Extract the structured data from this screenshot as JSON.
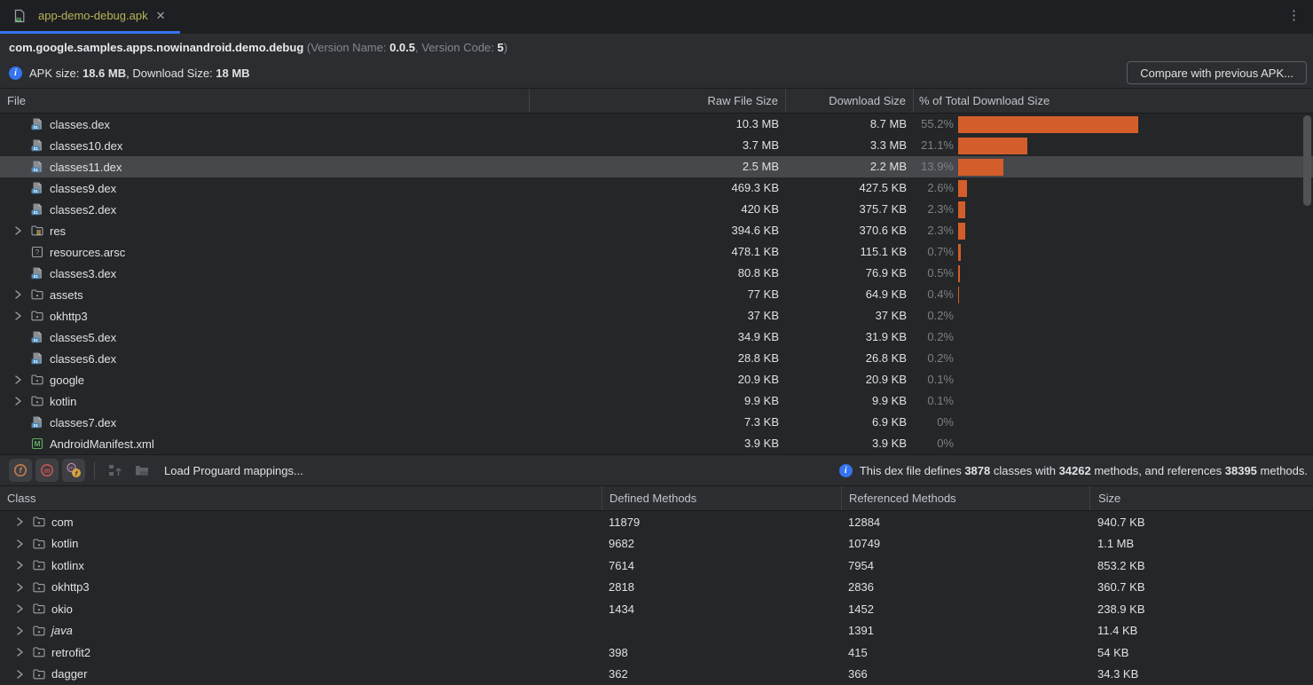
{
  "tab": {
    "title": "app-demo-debug.apk",
    "close_glyph": "✕",
    "kebab_glyph": "⋮"
  },
  "header": {
    "package": "com.google.samples.apps.nowinandroid.demo.debug",
    "ver_open": " (Version Name: ",
    "version_name": "0.0.5",
    "ver_mid": ", Version Code: ",
    "version_code": "5",
    "ver_close": ")"
  },
  "apk_summary": {
    "label1": "APK size: ",
    "apk_size": "18.6 MB",
    "label2": ", Download Size: ",
    "download_size": "18 MB",
    "compare_button": "Compare with previous APK..."
  },
  "colors": {
    "accent_blue": "#3574F0",
    "bar_orange": "#d35e2b",
    "selection_gray": "#46484b",
    "selection_blue": "#2e436e",
    "tab_label": "#b8b357"
  },
  "file_table": {
    "columns": [
      "File",
      "Raw File Size",
      "Download Size",
      "% of Total Download Size"
    ],
    "rows": [
      {
        "icon": "dex-file-icon",
        "chevron": false,
        "name": "classes.dex",
        "raw": "10.3 MB",
        "download": "8.7 MB",
        "pct": "55.2%",
        "pct_value": 55.2,
        "selected": false
      },
      {
        "icon": "dex-file-icon",
        "chevron": false,
        "name": "classes10.dex",
        "raw": "3.7 MB",
        "download": "3.3 MB",
        "pct": "21.1%",
        "pct_value": 21.1,
        "selected": false
      },
      {
        "icon": "dex-file-icon",
        "chevron": false,
        "name": "classes11.dex",
        "raw": "2.5 MB",
        "download": "2.2 MB",
        "pct": "13.9%",
        "pct_value": 13.9,
        "selected": true
      },
      {
        "icon": "dex-file-icon",
        "chevron": false,
        "name": "classes9.dex",
        "raw": "469.3 KB",
        "download": "427.5 KB",
        "pct": "2.6%",
        "pct_value": 2.6,
        "selected": false
      },
      {
        "icon": "dex-file-icon",
        "chevron": false,
        "name": "classes2.dex",
        "raw": "420 KB",
        "download": "375.7 KB",
        "pct": "2.3%",
        "pct_value": 2.3,
        "selected": false
      },
      {
        "icon": "res-folder-icon",
        "chevron": true,
        "name": "res",
        "raw": "394.6 KB",
        "download": "370.6 KB",
        "pct": "2.3%",
        "pct_value": 2.3,
        "selected": false
      },
      {
        "icon": "arsc-file-icon",
        "chevron": false,
        "name": "resources.arsc",
        "raw": "478.1 KB",
        "download": "115.1 KB",
        "pct": "0.7%",
        "pct_value": 0.7,
        "selected": false
      },
      {
        "icon": "dex-file-icon",
        "chevron": false,
        "name": "classes3.dex",
        "raw": "80.8 KB",
        "download": "76.9 KB",
        "pct": "0.5%",
        "pct_value": 0.5,
        "selected": false
      },
      {
        "icon": "folder-icon",
        "chevron": true,
        "name": "assets",
        "raw": "77 KB",
        "download": "64.9 KB",
        "pct": "0.4%",
        "pct_value": 0.4,
        "selected": false
      },
      {
        "icon": "folder-icon",
        "chevron": true,
        "name": "okhttp3",
        "raw": "37 KB",
        "download": "37 KB",
        "pct": "0.2%",
        "pct_value": 0.2,
        "selected": false
      },
      {
        "icon": "dex-file-icon",
        "chevron": false,
        "name": "classes5.dex",
        "raw": "34.9 KB",
        "download": "31.9 KB",
        "pct": "0.2%",
        "pct_value": 0.2,
        "selected": false
      },
      {
        "icon": "dex-file-icon",
        "chevron": false,
        "name": "classes6.dex",
        "raw": "28.8 KB",
        "download": "26.8 KB",
        "pct": "0.2%",
        "pct_value": 0.2,
        "selected": false
      },
      {
        "icon": "folder-icon",
        "chevron": true,
        "name": "google",
        "raw": "20.9 KB",
        "download": "20.9 KB",
        "pct": "0.1%",
        "pct_value": 0.1,
        "selected": false
      },
      {
        "icon": "folder-icon",
        "chevron": true,
        "name": "kotlin",
        "raw": "9.9 KB",
        "download": "9.9 KB",
        "pct": "0.1%",
        "pct_value": 0.1,
        "selected": false
      },
      {
        "icon": "dex-file-icon",
        "chevron": false,
        "name": "classes7.dex",
        "raw": "7.3 KB",
        "download": "6.9 KB",
        "pct": "0%",
        "pct_value": 0,
        "selected": false
      },
      {
        "icon": "manifest-file-icon",
        "chevron": false,
        "name": "AndroidManifest.xml",
        "raw": "3.9 KB",
        "download": "3.9 KB",
        "pct": "0%",
        "pct_value": 0,
        "selected": false
      }
    ]
  },
  "dex_toolbar": {
    "load_mappings_label": "Load Proguard mappings...",
    "info": {
      "t1": "This dex file defines ",
      "classes": "3878",
      "t2": " classes with ",
      "methods": "34262",
      "t3": " methods, and references ",
      "references": "38395",
      "t4": " methods."
    }
  },
  "class_table": {
    "columns": [
      "Class",
      "Defined Methods",
      "Referenced Methods",
      "Size"
    ],
    "rows": [
      {
        "name": "com",
        "defined": "11879",
        "referenced": "12884",
        "size": "940.7 KB",
        "selected": false,
        "italic": false
      },
      {
        "name": "kotlin",
        "defined": "9682",
        "referenced": "10749",
        "size": "1.1 MB",
        "selected": true,
        "italic": false
      },
      {
        "name": "kotlinx",
        "defined": "7614",
        "referenced": "7954",
        "size": "853.2 KB",
        "selected": false,
        "italic": false
      },
      {
        "name": "okhttp3",
        "defined": "2818",
        "referenced": "2836",
        "size": "360.7 KB",
        "selected": false,
        "italic": false
      },
      {
        "name": "okio",
        "defined": "1434",
        "referenced": "1452",
        "size": "238.9 KB",
        "selected": false,
        "italic": false
      },
      {
        "name": "java",
        "defined": "",
        "referenced": "1391",
        "size": "11.4 KB",
        "selected": false,
        "italic": true
      },
      {
        "name": "retrofit2",
        "defined": "398",
        "referenced": "415",
        "size": "54 KB",
        "selected": false,
        "italic": false
      },
      {
        "name": "dagger",
        "defined": "362",
        "referenced": "366",
        "size": "34.3 KB",
        "selected": false,
        "italic": false
      }
    ]
  }
}
